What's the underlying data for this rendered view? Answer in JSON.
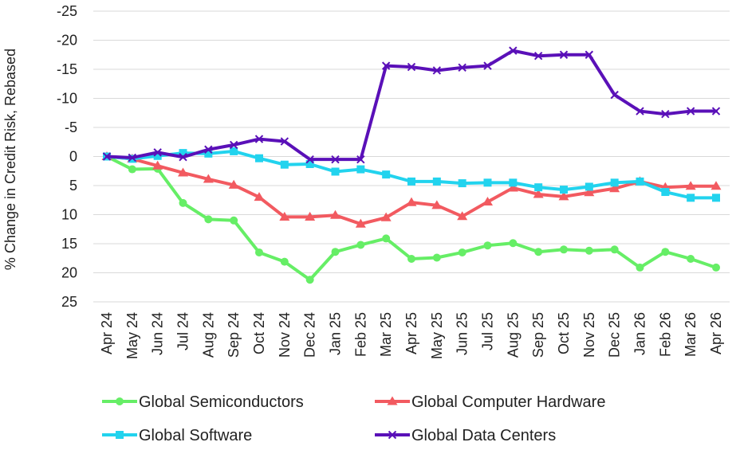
{
  "chart_data": {
    "type": "line",
    "title": "",
    "xlabel": "",
    "ylabel": "% Change in Credit Risk, Rebased",
    "y_axis_inverted": true,
    "ylim": [
      -25,
      25
    ],
    "yticks": [
      -25,
      -20,
      -15,
      -10,
      -5,
      0,
      5,
      10,
      15,
      20,
      25
    ],
    "ytick_labels": [
      "-25",
      "-20",
      "-15",
      "-10",
      "-5",
      "0",
      "5",
      "10",
      "15",
      "20",
      "25"
    ],
    "grid": "horizontal",
    "legend_position": "bottom",
    "categories": [
      "Apr 24",
      "May 24",
      "Jun 24",
      "Jul 24",
      "Aug 24",
      "Sep 24",
      "Oct 24",
      "Nov 24",
      "Dec 24",
      "Jan 25",
      "Feb 25",
      "Mar 25",
      "Apr 25",
      "May 25",
      "Jun 25",
      "Jul 25",
      "Aug 25",
      "Sep 25",
      "Oct 25",
      "Nov 25",
      "Dec 25",
      "Jan 26",
      "Feb 26",
      "Mar 26",
      "Apr 26"
    ],
    "series": [
      {
        "name": "Global Semiconductors",
        "color": "#66ee66",
        "marker": "circle",
        "values": [
          0,
          2.2,
          2.1,
          8,
          10.8,
          11,
          16.5,
          18.1,
          21.2,
          16.4,
          15.2,
          14.1,
          17.6,
          17.4,
          16.5,
          15.3,
          14.9,
          16.4,
          16.0,
          16.2,
          16.0,
          19.1,
          16.4,
          17.6,
          19.1
        ]
      },
      {
        "name": "Global Computer Hardware",
        "color": "#f25a60",
        "marker": "triangle",
        "values": [
          0,
          0.4,
          1.6,
          2.8,
          3.9,
          4.9,
          7,
          10.4,
          10.4,
          10.1,
          11.6,
          10.5,
          7.9,
          8.4,
          10.3,
          7.8,
          5.4,
          6.5,
          6.9,
          6.2,
          5.5,
          4.3,
          5.3,
          5.1,
          5.1
        ]
      },
      {
        "name": "Global Software",
        "color": "#22d3ee",
        "marker": "square",
        "values": [
          0,
          0.4,
          -0.1,
          -0.6,
          -0.5,
          -0.9,
          0.3,
          1.4,
          1.3,
          2.6,
          2.2,
          3.1,
          4.3,
          4.3,
          4.6,
          4.5,
          4.5,
          5.3,
          5.7,
          5.2,
          4.5,
          4.3,
          6.1,
          7.1,
          7.1
        ]
      },
      {
        "name": "Global Data Centers",
        "color": "#5a10b8",
        "marker": "x",
        "values": [
          0,
          0.2,
          -0.7,
          0.1,
          -1.2,
          -2.0,
          -3.0,
          -2.6,
          0.5,
          0.5,
          0.5,
          -15.6,
          -15.4,
          -14.8,
          -15.3,
          -15.6,
          -18.2,
          -17.3,
          -17.5,
          -17.5,
          -10.6,
          -7.8,
          -7.3,
          -7.8,
          -7.8
        ]
      }
    ]
  }
}
